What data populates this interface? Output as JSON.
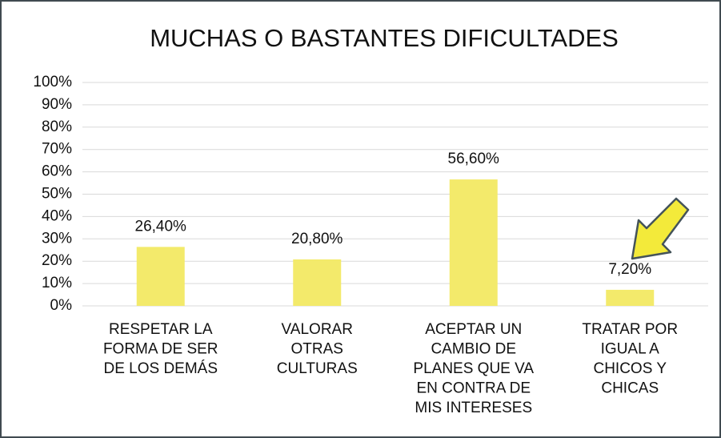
{
  "chart_data": {
    "type": "bar",
    "title": "MUCHAS O BASTANTES DIFICULTADES",
    "categories": [
      "RESPETAR LA\nFORMA DE SER\nDE LOS DEMÁS",
      "VALORAR\nOTRAS\nCULTURAS",
      "ACEPTAR UN\nCAMBIO DE\nPLANES QUE VA\nEN CONTRA DE\nMIS INTERESES",
      "TRATAR POR\nIGUAL A\nCHICOS Y\nCHICAS"
    ],
    "values": [
      26.4,
      20.8,
      56.6,
      7.2
    ],
    "value_labels": [
      "26,40%",
      "20,80%",
      "56,60%",
      "7,20%"
    ],
    "color": "#f3ea6b",
    "ylim": [
      0,
      100
    ],
    "yticks": [
      {
        "value": 0,
        "label": "0%"
      },
      {
        "value": 10,
        "label": "10%"
      },
      {
        "value": 20,
        "label": "20%"
      },
      {
        "value": 30,
        "label": "30%"
      },
      {
        "value": 40,
        "label": "40%"
      },
      {
        "value": 50,
        "label": "50%"
      },
      {
        "value": 60,
        "label": "60%"
      },
      {
        "value": 70,
        "label": "70%"
      },
      {
        "value": 80,
        "label": "80%"
      },
      {
        "value": 90,
        "label": "90%"
      },
      {
        "value": 100,
        "label": "100%"
      }
    ],
    "grid": true
  }
}
